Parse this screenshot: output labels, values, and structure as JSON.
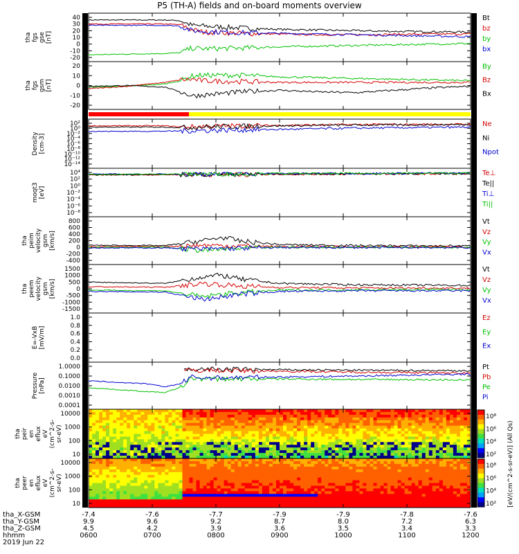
{
  "title": "P5 (TH-A) fields and on-board moments overview",
  "date_label": "2019 Jun 22",
  "colorbar_label": "[eV/(cm^2-s-sr-eV)] (All Qs)",
  "colorbar_ticks": [
    "10⁸",
    "10⁶",
    "10⁴",
    "10²",
    "10⁰"
  ],
  "chart_data": [
    {
      "type": "line",
      "panel": "tha_fgs_gse",
      "ylabel": [
        "tha",
        "fgs",
        "gse",
        "[nT]"
      ],
      "yticks": [
        "40",
        "30",
        "20",
        "10",
        "0",
        "-10",
        "-20"
      ],
      "ylim": [
        -20,
        40
      ],
      "legend": [
        {
          "name": "Bt",
          "color": "#000000"
        },
        {
          "name": "bz",
          "color": "#d40000"
        },
        {
          "name": "by",
          "color": "#00c000"
        },
        {
          "name": "bx",
          "color": "#0000d0"
        }
      ],
      "series": [
        {
          "name": "Bt",
          "color": "#000000",
          "x": [
            0,
            0.2,
            0.24,
            0.27,
            0.3,
            0.4,
            0.5,
            0.6,
            0.7,
            0.8,
            0.9,
            1
          ],
          "y": [
            36,
            36,
            35,
            28,
            27,
            24,
            22,
            21,
            20,
            19,
            18.5,
            18
          ]
        },
        {
          "name": "bz",
          "color": "#d40000",
          "x": [
            0,
            0.2,
            0.24,
            0.27,
            0.3,
            0.4,
            0.5,
            0.6,
            0.7,
            0.8,
            0.9,
            1
          ],
          "y": [
            30,
            30,
            29,
            22,
            18,
            16,
            15,
            14,
            14,
            14.5,
            15,
            15
          ]
        },
        {
          "name": "by",
          "color": "#00c000",
          "x": [
            0,
            0.2,
            0.24,
            0.27,
            0.3,
            0.4,
            0.5,
            0.6,
            0.7,
            0.8,
            0.9,
            1
          ],
          "y": [
            -16,
            -14,
            -13,
            -6,
            -7,
            -6,
            -4,
            -3,
            -2,
            -1,
            0,
            1
          ]
        },
        {
          "name": "bx",
          "color": "#0000d0",
          "x": [
            0,
            0.2,
            0.24,
            0.27,
            0.3,
            0.4,
            0.5,
            0.6,
            0.7,
            0.8,
            0.9,
            1
          ],
          "y": [
            28,
            28,
            27,
            20,
            19,
            17,
            16,
            15,
            14,
            13,
            12,
            11
          ]
        }
      ]
    },
    {
      "type": "line",
      "panel": "tha_fgs_gsm",
      "ylabel": [
        "tha",
        "fgs",
        "gsm",
        "[nT]"
      ],
      "yticks": [
        "20",
        "10",
        "0",
        "-10",
        "-20"
      ],
      "ylim": [
        -25,
        25
      ],
      "legend": [
        {
          "name": "By",
          "color": "#00c000"
        },
        {
          "name": "Bz",
          "color": "#d40000"
        },
        {
          "name": "Bx",
          "color": "#000000"
        }
      ],
      "series": [
        {
          "name": "By",
          "color": "#00c000",
          "x": [
            0,
            0.1,
            0.2,
            0.24,
            0.27,
            0.3,
            0.4,
            0.5,
            0.6,
            0.7,
            0.8,
            0.9,
            1
          ],
          "y": [
            -2,
            -1,
            2,
            6,
            12,
            13,
            13,
            11,
            10,
            9,
            8,
            7,
            6
          ]
        },
        {
          "name": "Bz",
          "color": "#d40000",
          "x": [
            0,
            0.1,
            0.2,
            0.24,
            0.27,
            0.3,
            0.4,
            0.5,
            0.6,
            0.7,
            0.8,
            0.9,
            1
          ],
          "y": [
            -4,
            -1,
            4,
            7,
            8,
            6,
            5,
            4,
            4,
            4,
            4,
            4,
            4
          ]
        },
        {
          "name": "Bx",
          "color": "#000000",
          "x": [
            0,
            0.1,
            0.2,
            0.24,
            0.27,
            0.3,
            0.4,
            0.5,
            0.6,
            0.7,
            0.8,
            0.9,
            1
          ],
          "y": [
            -1,
            0,
            -2,
            -8,
            -13,
            -12,
            -8,
            -6,
            -8,
            -9,
            -6,
            -3,
            -1
          ]
        }
      ]
    },
    {
      "type": "line",
      "panel": "Density",
      "ylabel": [
        "Density",
        "[cm-3]"
      ],
      "yticks": [
        "10²",
        "10⁰",
        "10⁻²",
        "10⁻⁴",
        "10⁻⁶",
        "10⁻⁸",
        "10⁻¹⁰",
        "10⁻¹²",
        "10⁻¹⁴"
      ],
      "yscale": "log",
      "ylim": [
        -14,
        2
      ],
      "legend": [
        {
          "name": "Ne",
          "color": "#d40000"
        },
        {
          "name": "Ni",
          "color": "#000000"
        },
        {
          "name": "Npot",
          "color": "#0000d0"
        }
      ],
      "series": [
        {
          "name": "Ne",
          "color": "#d40000",
          "x": [
            0,
            0.2,
            0.25,
            0.3,
            0.5,
            0.7,
            1
          ],
          "y": [
            1,
            1,
            0.5,
            0.8,
            1.2,
            1.5,
            1.6
          ]
        },
        {
          "name": "Ni",
          "color": "#000000",
          "x": [
            0,
            0.2,
            0.25,
            0.3,
            0.5,
            0.7,
            1
          ],
          "y": [
            0.5,
            0.5,
            0.3,
            0.6,
            1.0,
            1.3,
            1.5
          ]
        },
        {
          "name": "Npot",
          "color": "#0000d0",
          "x": [
            0,
            0.2,
            0.25,
            0.3,
            0.5,
            0.7,
            1
          ],
          "y": [
            -1.2,
            -1.1,
            -1.0,
            -0.8,
            -0.4,
            0.1,
            0.5
          ]
        }
      ]
    },
    {
      "type": "line",
      "panel": "moqt3",
      "ylabel": [
        "moqt3",
        "[eV]"
      ],
      "yticks": [
        "10⁴",
        "10²",
        "10⁰",
        "10⁻²",
        "10⁻⁴",
        "10⁻⁶",
        "10⁻⁸"
      ],
      "yscale": "log",
      "ylim": [
        -8,
        4
      ],
      "legend": [
        {
          "name": "Te⊥",
          "color": "#d40000"
        },
        {
          "name": "Te||",
          "color": "#000000"
        },
        {
          "name": "Ti⊥",
          "color": "#0000d0"
        },
        {
          "name": "Ti||",
          "color": "#00c000"
        }
      ],
      "series": [
        {
          "name": "Te⊥",
          "color": "#d40000",
          "x": [
            0,
            0.2,
            0.3,
            1
          ],
          "y": [
            3.2,
            3.3,
            3.4,
            3.6
          ]
        },
        {
          "name": "Te||",
          "color": "#000000",
          "x": [
            0,
            0.2,
            0.3,
            1
          ],
          "y": [
            3.3,
            3.4,
            3.5,
            3.7
          ]
        },
        {
          "name": "Ti⊥",
          "color": "#0000d0",
          "x": [
            0,
            0.2,
            0.3,
            1
          ],
          "y": [
            3.5,
            3.5,
            3.6,
            3.8
          ]
        },
        {
          "name": "Ti||",
          "color": "#00c000",
          "x": [
            0,
            0.2,
            0.3,
            1
          ],
          "y": [
            3.4,
            3.5,
            3.6,
            3.8
          ]
        }
      ]
    },
    {
      "type": "line",
      "panel": "tha_peim_velocity_gsm",
      "ylabel": [
        "tha",
        "peim",
        "velocity",
        "gsm",
        "[km/s]"
      ],
      "yticks": [
        "800",
        "600",
        "400",
        "200",
        "0",
        "-200",
        "-400"
      ],
      "ylim": [
        -400,
        800
      ],
      "legend": [
        {
          "name": "Vt",
          "color": "#000000"
        },
        {
          "name": "Vz",
          "color": "#d40000"
        },
        {
          "name": "Vy",
          "color": "#00c000"
        },
        {
          "name": "Vx",
          "color": "#0000d0"
        }
      ],
      "series": [
        {
          "name": "Vt",
          "color": "#000000",
          "x": [
            0,
            0.2,
            0.3,
            0.35,
            0.4,
            0.5,
            0.7,
            1
          ],
          "y": [
            60,
            50,
            200,
            300,
            180,
            80,
            50,
            40
          ]
        },
        {
          "name": "Vz",
          "color": "#d40000",
          "x": [
            0,
            0.2,
            0.3,
            0.35,
            0.4,
            0.5,
            0.7,
            1
          ],
          "y": [
            20,
            20,
            60,
            50,
            40,
            20,
            10,
            10
          ]
        },
        {
          "name": "Vy",
          "color": "#00c000",
          "x": [
            0,
            0.2,
            0.3,
            0.35,
            0.4,
            0.5,
            0.7,
            1
          ],
          "y": [
            0,
            0,
            -100,
            -60,
            -40,
            0,
            0,
            0
          ]
        },
        {
          "name": "Vx",
          "color": "#0000d0",
          "x": [
            0,
            0.2,
            0.3,
            0.35,
            0.4,
            0.5,
            0.7,
            1
          ],
          "y": [
            -20,
            -20,
            -60,
            -40,
            -30,
            -10,
            -10,
            -10
          ]
        }
      ]
    },
    {
      "type": "line",
      "panel": "tha_peem_velocity_gsm",
      "ylabel": [
        "tha",
        "peem",
        "velocity",
        "gsm",
        "[km/s]"
      ],
      "yticks": [
        "1500",
        "1000",
        "500",
        "0",
        "-500",
        "-1000",
        "-1500"
      ],
      "ylim": [
        -1500,
        1500
      ],
      "legend": [
        {
          "name": "Vt",
          "color": "#000000"
        },
        {
          "name": "Vz",
          "color": "#d40000"
        },
        {
          "name": "Vy",
          "color": "#00c000"
        },
        {
          "name": "Vx",
          "color": "#0000d0"
        }
      ],
      "series": [
        {
          "name": "Vt",
          "color": "#000000",
          "x": [
            0,
            0.2,
            0.3,
            0.35,
            0.4,
            0.5,
            0.7,
            1
          ],
          "y": [
            500,
            400,
            900,
            1000,
            700,
            400,
            300,
            250
          ]
        },
        {
          "name": "Vz",
          "color": "#d40000",
          "x": [
            0,
            0.2,
            0.3,
            0.35,
            0.4,
            0.5,
            0.7,
            1
          ],
          "y": [
            150,
            120,
            400,
            300,
            200,
            100,
            60,
            50
          ]
        },
        {
          "name": "Vy",
          "color": "#00c000",
          "x": [
            0,
            0.2,
            0.3,
            0.35,
            0.4,
            0.5,
            0.7,
            1
          ],
          "y": [
            -100,
            -150,
            -600,
            -400,
            -300,
            -100,
            -80,
            -60
          ]
        },
        {
          "name": "Vx",
          "color": "#0000d0",
          "x": [
            0,
            0.2,
            0.3,
            0.35,
            0.4,
            0.5,
            0.7,
            1
          ],
          "y": [
            -200,
            -250,
            -800,
            -600,
            -400,
            -200,
            -150,
            -150
          ]
        }
      ]
    },
    {
      "type": "line",
      "panel": "E=-VxB",
      "ylabel": [
        "E=-VxB",
        "[mV/m]"
      ],
      "yticks": [
        "1.0",
        "0.8",
        "0.6",
        "0.4",
        "0.2",
        "0.0"
      ],
      "ylim": [
        0,
        1
      ],
      "legend": [
        {
          "name": "Ez",
          "color": "#d40000"
        },
        {
          "name": "Ey",
          "color": "#00c000"
        },
        {
          "name": "Ex",
          "color": "#0000d0"
        }
      ],
      "series": []
    },
    {
      "type": "line",
      "panel": "Pressure",
      "ylabel": [
        "Pressure",
        "[nPa]"
      ],
      "yticks": [
        "1.0000",
        "0.1000",
        "0.0100",
        "0.0010",
        "0.0001"
      ],
      "yscale": "log",
      "ylim": [
        -4,
        0
      ],
      "legend": [
        {
          "name": "Pt",
          "color": "#000000"
        },
        {
          "name": "Pb",
          "color": "#d40000"
        },
        {
          "name": "Pe",
          "color": "#00c000"
        },
        {
          "name": "Pi",
          "color": "#0000d0"
        }
      ],
      "series": [
        {
          "name": "Pt",
          "color": "#000000",
          "x": [
            0.25,
            0.3,
            0.5,
            0.7,
            1
          ],
          "y": [
            -0.35,
            -0.3,
            -0.35,
            -0.4,
            -0.45
          ]
        },
        {
          "name": "Pb",
          "color": "#d40000",
          "x": [
            0.25,
            0.3,
            0.5,
            0.7,
            1
          ],
          "y": [
            -0.45,
            -0.4,
            -0.5,
            -0.6,
            -0.7
          ]
        },
        {
          "name": "Pe",
          "color": "#00c000",
          "x": [
            0,
            0.15,
            0.2,
            0.24,
            0.27,
            0.3,
            0.5,
            0.7,
            1
          ],
          "y": [
            -2.2,
            -2.6,
            -2.7,
            -2.2,
            -1.2,
            -1.3,
            -1.3,
            -1.35,
            -1.4
          ]
        },
        {
          "name": "Pi",
          "color": "#0000d0",
          "x": [
            0,
            0.15,
            0.2,
            0.24,
            0.27,
            0.3,
            0.5,
            0.7,
            1
          ],
          "y": [
            -1.5,
            -1.8,
            -2.1,
            -1.8,
            -1.1,
            -1.2,
            -1.1,
            -1.0,
            -0.8
          ]
        }
      ]
    },
    {
      "type": "heatmap",
      "panel": "tha_peir_en_eflux",
      "ylabel": [
        "tha",
        "peir",
        "en",
        "eflux",
        "eV",
        "(cm^2-s-",
        "sr-eV)"
      ],
      "yticks": [
        "10000",
        "1000",
        "100",
        "10"
      ],
      "yscale": "log"
    },
    {
      "type": "heatmap",
      "panel": "tha_peer_en_eflux",
      "ylabel": [
        "tha",
        "peer",
        "en",
        "eflux",
        "eV",
        "(cm^2-s-",
        "sr-eV)"
      ],
      "yticks": [
        "10000",
        "1000",
        "100",
        "10"
      ],
      "yscale": "log"
    }
  ],
  "ephemeris": {
    "rows": [
      {
        "label": "tha_X-GSM",
        "values": [
          "-7.4",
          "-7.6",
          "-7.7",
          "-7.9",
          "-7.9",
          "-7.8",
          "-7.6"
        ]
      },
      {
        "label": "tha_Y-GSM",
        "values": [
          "9.9",
          "9.6",
          "9.2",
          "8.7",
          "8.0",
          "7.2",
          "6.3"
        ]
      },
      {
        "label": "tha_Z-GSM",
        "values": [
          "4.5",
          "4.2",
          "3.9",
          "3.6",
          "3.5",
          "3.4",
          "3.3"
        ]
      },
      {
        "label": "hhmm",
        "values": [
          "0600",
          "0700",
          "0800",
          "0900",
          "1000",
          "1100",
          "1200"
        ]
      }
    ]
  }
}
